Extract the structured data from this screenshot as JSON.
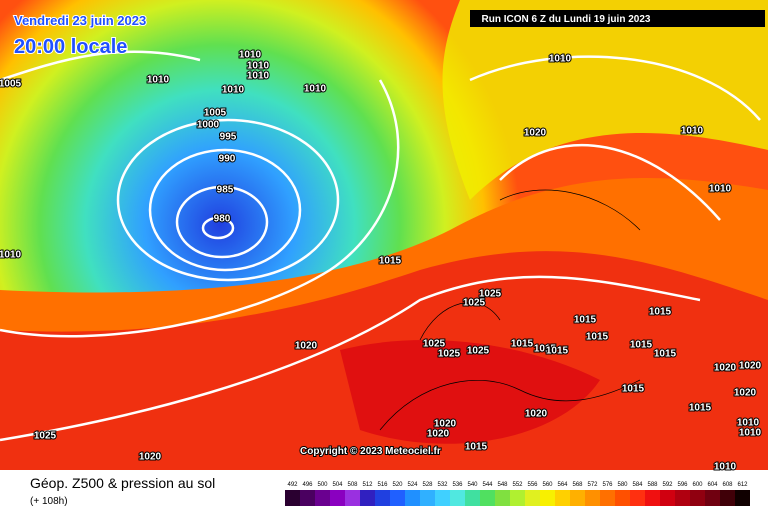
{
  "header": {
    "date": "Vendredi 23 juin 2023",
    "time": "20:00 locale",
    "run": "Run ICON 6 Z du Lundi 19 juin 2023"
  },
  "isobar_labels": [
    "1010",
    "1010",
    "1010",
    "1010",
    "1010",
    "1005",
    "1010",
    "1005",
    "1000",
    "995",
    "990",
    "985",
    "980",
    "1010",
    "1020",
    "1010",
    "1010",
    "1015",
    "1010",
    "1025",
    "1025",
    "1015",
    "1015",
    "1025",
    "1025",
    "1025",
    "1015",
    "1015",
    "1015",
    "1015",
    "1015",
    "1015",
    "1020",
    "1020",
    "1020",
    "1015",
    "1020",
    "1015",
    "1020",
    "1010",
    "1010",
    "1025",
    "1020",
    "1020",
    "1015",
    "1020",
    "1010"
  ],
  "copyright": "Copyright © 2023 Meteociel.fr",
  "legend": {
    "title": "Géop. Z500 & pression au sol",
    "subtitle": "(+ 108h)",
    "values": [
      492,
      496,
      500,
      504,
      508,
      512,
      516,
      520,
      524,
      528,
      532,
      536,
      540,
      544,
      548,
      552,
      556,
      560,
      564,
      568,
      572,
      576,
      580,
      584,
      588,
      592,
      596,
      600,
      604,
      608,
      612
    ],
    "colors": [
      "#2a0030",
      "#4a0060",
      "#6a0090",
      "#8a00c0",
      "#9a30e0",
      "#3020c0",
      "#2040e0",
      "#2060ff",
      "#2090ff",
      "#30b0ff",
      "#40d0ff",
      "#50e8e0",
      "#40e0a0",
      "#50e060",
      "#80e040",
      "#b0f030",
      "#e0f020",
      "#f8f000",
      "#ffd000",
      "#ffb000",
      "#ff9000",
      "#ff7000",
      "#ff5000",
      "#ff3010",
      "#f01010",
      "#d00010",
      "#b00010",
      "#900010",
      "#700010",
      "#400008",
      "#100000"
    ]
  }
}
